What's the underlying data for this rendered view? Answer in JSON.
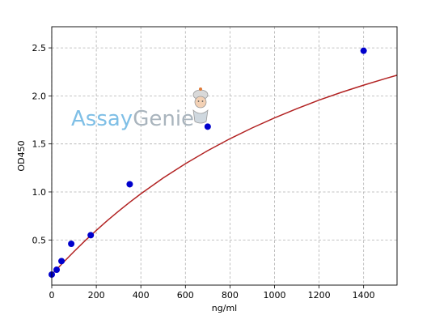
{
  "colors": {
    "curve": "#b22222",
    "points": "#0000cc",
    "watermark_assay": "#7fbfe6",
    "watermark_genie": "#a9b4bd"
  },
  "watermark": {
    "part1": "Assay",
    "part2": "Genie",
    "icon": "genie-mascot-icon"
  },
  "chart_data": {
    "type": "scatter",
    "title": "",
    "xlabel": "ng/ml",
    "ylabel": "OD450",
    "xlim": [
      0,
      1550
    ],
    "ylim": [
      0.03,
      2.72
    ],
    "xticks": [
      0,
      200,
      400,
      600,
      800,
      1000,
      1200,
      1400
    ],
    "yticks": [
      0.5,
      1.0,
      1.5,
      2.0,
      2.5
    ],
    "xtick_labels": [
      "0",
      "200",
      "400",
      "600",
      "800",
      "1000",
      "1200",
      "1400"
    ],
    "ytick_labels": [
      "0.5",
      "1.0",
      "1.5",
      "2.0",
      "2.5"
    ],
    "grid": true,
    "legend": "none",
    "series": [
      {
        "kind": "points",
        "x": [
          0,
          21.9,
          43.8,
          87.5,
          175,
          350,
          700,
          1400
        ],
        "y": [
          0.14,
          0.19,
          0.28,
          0.46,
          0.55,
          1.08,
          1.68,
          2.47
        ]
      },
      {
        "kind": "fit_curve",
        "x": [
          0,
          25,
          50,
          100,
          150,
          200,
          250,
          300,
          350,
          400,
          500,
          600,
          700,
          800,
          900,
          1000,
          1100,
          1200,
          1300,
          1400,
          1500,
          1550
        ],
        "y": [
          0.14,
          0.201,
          0.262,
          0.38,
          0.493,
          0.6,
          0.703,
          0.8,
          0.893,
          0.981,
          1.145,
          1.294,
          1.43,
          1.554,
          1.667,
          1.771,
          1.867,
          1.956,
          2.037,
          2.112,
          2.182,
          2.215
        ]
      }
    ]
  }
}
